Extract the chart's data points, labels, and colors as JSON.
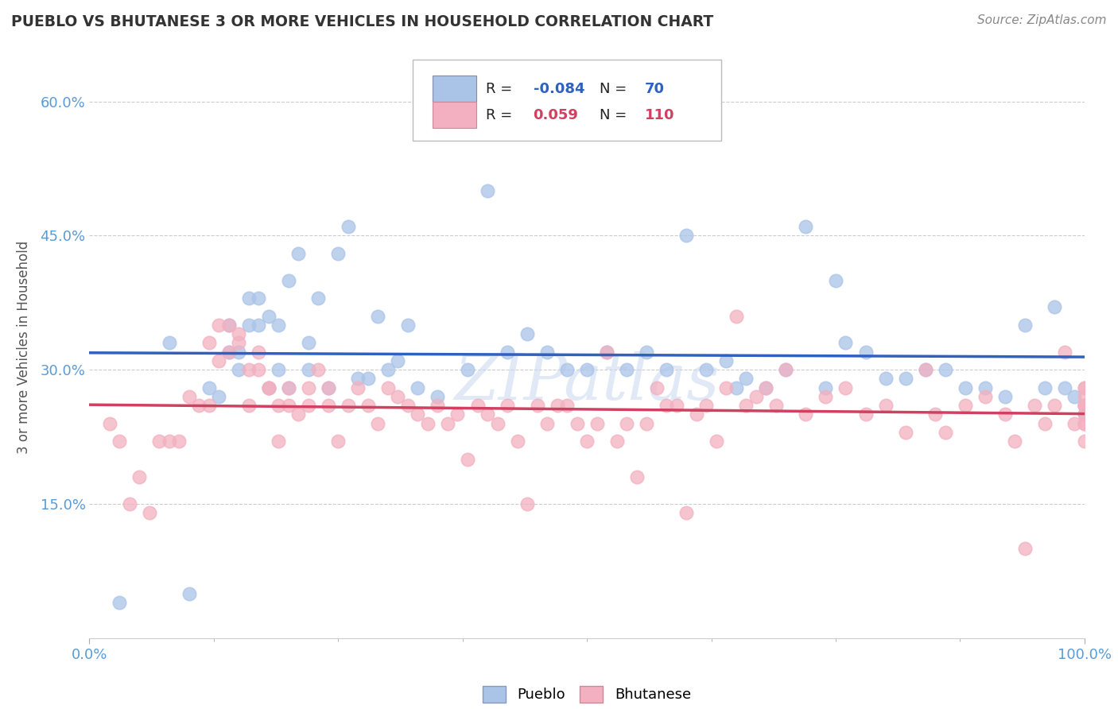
{
  "title": "PUEBLO VS BHUTANESE 3 OR MORE VEHICLES IN HOUSEHOLD CORRELATION CHART",
  "source": "Source: ZipAtlas.com",
  "ylabel": "3 or more Vehicles in Household",
  "xlim": [
    0,
    100
  ],
  "ylim": [
    0,
    65
  ],
  "ytick_vals": [
    0,
    15,
    30,
    45,
    60
  ],
  "ytick_labels": [
    "",
    "15.0%",
    "30.0%",
    "45.0%",
    "60.0%"
  ],
  "xtick_vals": [
    0,
    100
  ],
  "xtick_labels": [
    "0.0%",
    "100.0%"
  ],
  "pueblo_color": "#aac4e8",
  "bhutanese_color": "#f2b0c0",
  "pueblo_line_color": "#3060c0",
  "bhutanese_line_color": "#d04060",
  "pueblo_R": -0.084,
  "pueblo_N": 70,
  "bhutanese_R": 0.059,
  "bhutanese_N": 110,
  "legend_label_pueblo": "Pueblo",
  "legend_label_bhutanese": "Bhutanese",
  "background_color": "#ffffff",
  "watermark": "ZIPatlas",
  "grid_color": "#cccccc",
  "tick_color": "#5b9bd5",
  "pueblo_points_x": [
    3,
    8,
    10,
    12,
    13,
    14,
    14,
    15,
    15,
    16,
    16,
    17,
    17,
    18,
    18,
    19,
    19,
    20,
    20,
    21,
    22,
    22,
    23,
    24,
    25,
    26,
    27,
    28,
    29,
    30,
    31,
    32,
    33,
    35,
    38,
    40,
    42,
    44,
    46,
    48,
    50,
    52,
    54,
    56,
    58,
    60,
    62,
    64,
    65,
    66,
    68,
    70,
    72,
    74,
    75,
    76,
    78,
    80,
    82,
    84,
    86,
    88,
    90,
    92,
    94,
    96,
    97,
    98,
    99,
    100
  ],
  "pueblo_points_y": [
    4,
    33,
    5,
    28,
    27,
    32,
    35,
    32,
    30,
    38,
    35,
    35,
    38,
    36,
    28,
    35,
    30,
    28,
    40,
    43,
    33,
    30,
    38,
    28,
    43,
    46,
    29,
    29,
    36,
    30,
    31,
    35,
    28,
    27,
    30,
    50,
    32,
    34,
    32,
    30,
    30,
    32,
    30,
    32,
    30,
    45,
    30,
    31,
    28,
    29,
    28,
    30,
    46,
    28,
    40,
    33,
    32,
    29,
    29,
    30,
    30,
    28,
    28,
    27,
    35,
    28,
    37,
    28,
    27,
    25
  ],
  "bhutanese_points_x": [
    2,
    3,
    4,
    5,
    6,
    7,
    8,
    9,
    10,
    11,
    12,
    12,
    13,
    13,
    14,
    14,
    15,
    15,
    16,
    16,
    17,
    17,
    18,
    18,
    19,
    19,
    20,
    20,
    21,
    22,
    22,
    23,
    24,
    24,
    25,
    26,
    27,
    28,
    29,
    30,
    31,
    32,
    33,
    34,
    35,
    36,
    37,
    38,
    39,
    40,
    41,
    42,
    43,
    44,
    45,
    46,
    47,
    48,
    49,
    50,
    51,
    52,
    53,
    54,
    55,
    56,
    57,
    58,
    59,
    60,
    61,
    62,
    63,
    64,
    65,
    66,
    67,
    68,
    69,
    70,
    72,
    74,
    76,
    78,
    80,
    82,
    84,
    85,
    86,
    88,
    90,
    92,
    93,
    94,
    95,
    96,
    97,
    98,
    99,
    100,
    100,
    100,
    100,
    100,
    100,
    100,
    100,
    100,
    100,
    100
  ],
  "bhutanese_points_y": [
    24,
    22,
    15,
    18,
    14,
    22,
    22,
    22,
    27,
    26,
    33,
    26,
    35,
    31,
    32,
    35,
    34,
    33,
    30,
    26,
    32,
    30,
    28,
    28,
    26,
    22,
    28,
    26,
    25,
    26,
    28,
    30,
    28,
    26,
    22,
    26,
    28,
    26,
    24,
    28,
    27,
    26,
    25,
    24,
    26,
    24,
    25,
    20,
    26,
    25,
    24,
    26,
    22,
    15,
    26,
    24,
    26,
    26,
    24,
    22,
    24,
    32,
    22,
    24,
    18,
    24,
    28,
    26,
    26,
    14,
    25,
    26,
    22,
    28,
    36,
    26,
    27,
    28,
    26,
    30,
    25,
    27,
    28,
    25,
    26,
    23,
    30,
    25,
    23,
    26,
    27,
    25,
    22,
    10,
    26,
    24,
    26,
    32,
    24,
    26,
    28,
    27,
    24,
    22,
    26,
    28,
    26,
    25,
    24,
    26
  ]
}
